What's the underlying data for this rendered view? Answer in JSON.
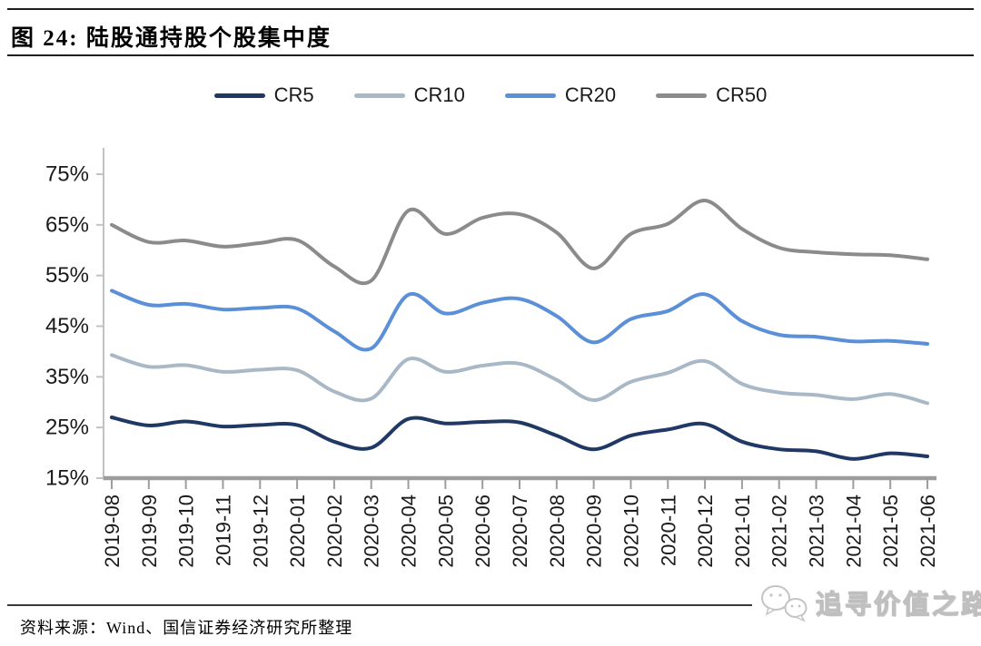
{
  "figure": {
    "title": "图 24:  陆股通持股个股集中度",
    "source": "资料来源：Wind、国信证券经济研究所整理",
    "watermark_text": "追寻价值之路"
  },
  "chart_data": {
    "type": "line",
    "title": "陆股通持股个股集中度",
    "smooth": true,
    "grid": false,
    "legend_position": "top",
    "x_label_rotation": -90,
    "x_labels": [
      "2019-08",
      "2019-09",
      "2019-10",
      "2019-11",
      "2019-12",
      "2020-01",
      "2020-02",
      "2020-03",
      "2020-04",
      "2020-05",
      "2020-06",
      "2020-07",
      "2020-08",
      "2020-09",
      "2020-10",
      "2020-11",
      "2020-12",
      "2021-01",
      "2021-02",
      "2021-03",
      "2021-04",
      "2021-05",
      "2021-06"
    ],
    "y_axis": {
      "min": 15,
      "max": 75,
      "tick_step": 10,
      "tick_suffix": "%"
    },
    "series": [
      {
        "name": "CR5",
        "color": "#1f3864",
        "values": [
          27.0,
          25.4,
          26.2,
          25.2,
          25.5,
          25.5,
          22.2,
          21.0,
          26.7,
          25.8,
          26.1,
          26.0,
          23.4,
          20.7,
          23.4,
          24.6,
          25.7,
          22.2,
          20.7,
          20.3,
          18.8,
          19.9,
          19.3
        ]
      },
      {
        "name": "CR10",
        "color": "#a9b8c6",
        "values": [
          39.3,
          37.0,
          37.3,
          36.0,
          36.4,
          36.3,
          32.1,
          30.7,
          38.5,
          36.0,
          37.2,
          37.6,
          34.4,
          30.4,
          34.0,
          35.8,
          38.1,
          33.6,
          31.9,
          31.4,
          30.6,
          31.6,
          29.8
        ]
      },
      {
        "name": "CR20",
        "color": "#5b90d8",
        "values": [
          52.0,
          49.2,
          49.4,
          48.3,
          48.6,
          48.5,
          44.0,
          40.6,
          51.2,
          47.5,
          49.6,
          50.4,
          47.0,
          41.8,
          46.4,
          48.0,
          51.3,
          46.0,
          43.3,
          42.9,
          42.0,
          42.1,
          41.5
        ]
      },
      {
        "name": "CR50",
        "color": "#8b8b8b",
        "values": [
          65.0,
          61.6,
          61.9,
          60.7,
          61.4,
          62.0,
          56.8,
          54.0,
          67.8,
          63.2,
          66.4,
          67.1,
          63.5,
          56.4,
          63.2,
          65.2,
          69.8,
          64.2,
          60.5,
          59.6,
          59.2,
          59.0,
          58.2
        ]
      }
    ]
  },
  "style": {
    "axis_line_color": "#c2c2c2",
    "baseline_color": "#9d9d9d",
    "label_color": "#1a1a1a",
    "watermark_color": "#c6c6c6"
  }
}
